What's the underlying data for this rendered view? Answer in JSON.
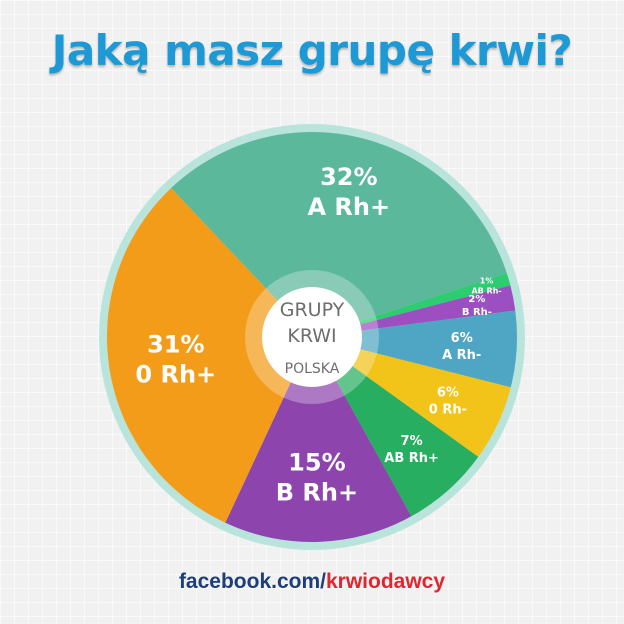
{
  "chart_data": {
    "type": "pie",
    "title": "Jaką masz grupę krwi?",
    "center_label": [
      "GRUPY",
      "KRWI"
    ],
    "center_sublabel": "POLSKA",
    "slices": [
      {
        "label": "0 Rh+",
        "value": 31,
        "value_label": "31%",
        "color": "#f39c1a"
      },
      {
        "label": "A Rh+",
        "value": 32,
        "value_label": "32%",
        "color": "#5cb89b"
      },
      {
        "label": "AB Rh-",
        "value": 1,
        "value_label": "1%",
        "color": "#2ecc71"
      },
      {
        "label": "B Rh-",
        "value": 2,
        "value_label": "2%",
        "color": "#9b4fc1"
      },
      {
        "label": "A Rh-",
        "value": 6,
        "value_label": "6%",
        "color": "#4fa6c4"
      },
      {
        "label": "0 Rh-",
        "value": 6,
        "value_label": "6%",
        "color": "#f2c318"
      },
      {
        "label": "AB Rh+",
        "value": 7,
        "value_label": "7%",
        "color": "#27ae60"
      },
      {
        "label": "B Rh+",
        "value": 15,
        "value_label": "15%",
        "color": "#8e44ad"
      }
    ]
  },
  "footer": {
    "prefix": "facebook.com/",
    "handle": "krwiodawcy"
  },
  "colors": {
    "title": "#1d9ad6",
    "ring": "#b9e4dc",
    "footer_base": "#1c3f7c",
    "footer_accent": "#e0262e"
  }
}
